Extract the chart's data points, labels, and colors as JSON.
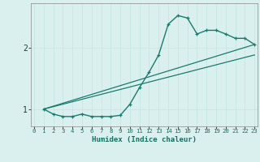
{
  "xlabel": "Humidex (Indice chaleur)",
  "bg_color": "#d9f0ee",
  "grid_color": "#c8e8e4",
  "line_color": "#1a7a6e",
  "x_ticks": [
    0,
    1,
    2,
    3,
    4,
    5,
    6,
    7,
    8,
    9,
    10,
    11,
    12,
    13,
    14,
    15,
    16,
    17,
    18,
    19,
    20,
    21,
    22,
    23
  ],
  "y_ticks": [
    1,
    2
  ],
  "xlim": [
    -0.3,
    23.3
  ],
  "ylim": [
    0.72,
    2.72
  ],
  "line1_x": [
    1,
    2,
    3,
    4,
    5,
    6,
    7,
    8,
    9,
    10,
    11,
    12,
    13,
    14,
    15,
    16,
    17,
    18,
    19,
    20,
    21,
    22,
    23
  ],
  "line1_y": [
    1.0,
    0.92,
    0.88,
    0.88,
    0.92,
    0.88,
    0.88,
    0.88,
    0.9,
    1.08,
    1.35,
    1.6,
    1.88,
    2.38,
    2.52,
    2.48,
    2.22,
    2.28,
    2.28,
    2.22,
    2.15,
    2.15,
    2.05
  ],
  "line2_x": [
    1,
    23
  ],
  "line2_y": [
    1.0,
    2.05
  ],
  "line3_x": [
    1,
    23
  ],
  "line3_y": [
    1.0,
    1.88
  ]
}
